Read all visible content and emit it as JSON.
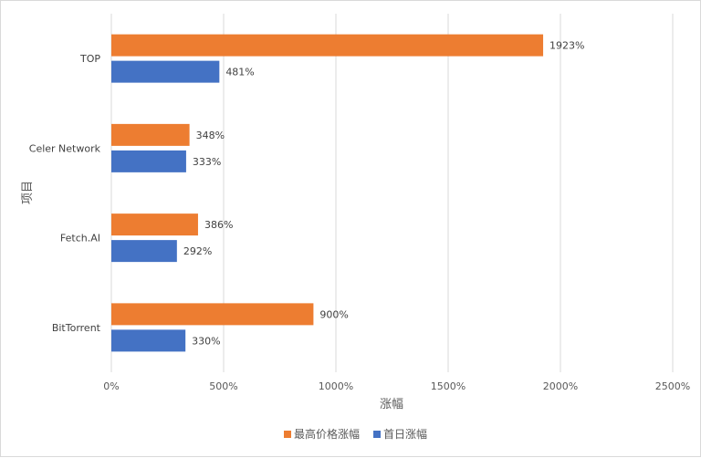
{
  "chart_data": {
    "type": "bar",
    "orientation": "horizontal",
    "categories": [
      "TOP",
      "Celer Network",
      "Fetch.AI",
      "BitTorrent"
    ],
    "series": [
      {
        "name": "最高价格涨幅",
        "values": [
          1923,
          348,
          386,
          900
        ],
        "labels": [
          "1923%",
          "348%",
          "386%",
          "900%"
        ],
        "color": "#ed7d31"
      },
      {
        "name": "首日涨幅",
        "values": [
          481,
          333,
          292,
          330
        ],
        "labels": [
          "481%",
          "333%",
          "292%",
          "330%"
        ],
        "color": "#4472c4"
      }
    ],
    "xlabel": "涨幅",
    "ylabel": "项目",
    "xlim": [
      0,
      2500
    ],
    "xticks": [
      0,
      500,
      1000,
      1500,
      2000,
      2500
    ],
    "xtick_labels": [
      "0%",
      "500%",
      "1000%",
      "1500%",
      "2000%",
      "2500%"
    ],
    "grid": "vertical",
    "legend_position": "bottom",
    "gridline_color": "#d9d9d9"
  }
}
